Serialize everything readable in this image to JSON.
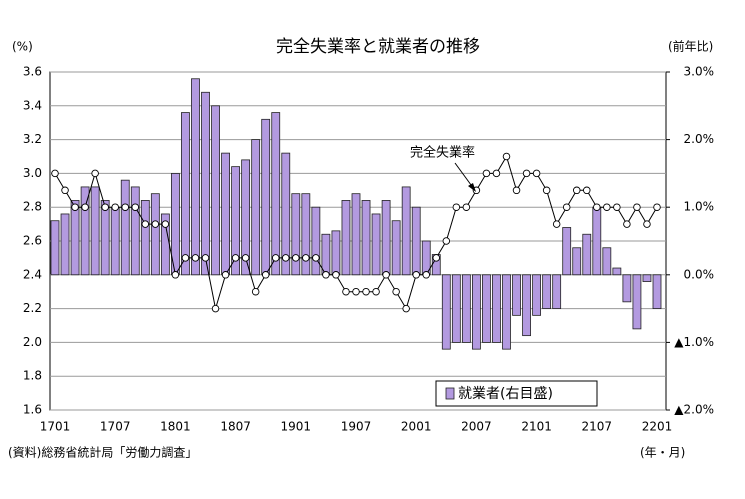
{
  "chart_data": {
    "type": "bar",
    "title": "完全失業率と就業者の推移",
    "y_label": "(%)",
    "y2_label": "(前年比)",
    "x_label": "(年・月)",
    "source": "(資料)総務省統計局「労働力調査」",
    "categories": [
      "1701",
      null,
      null,
      null,
      null,
      null,
      "1707",
      null,
      null,
      null,
      null,
      null,
      "1801",
      null,
      null,
      null,
      null,
      null,
      "1807",
      null,
      null,
      null,
      null,
      null,
      "1901",
      null,
      null,
      null,
      null,
      null,
      "1907",
      null,
      null,
      null,
      null,
      null,
      "2001",
      null,
      null,
      null,
      null,
      null,
      "2007",
      null,
      null,
      null,
      null,
      null,
      "2101",
      null,
      null,
      null,
      null,
      null,
      "2107",
      null,
      null,
      null,
      null,
      null,
      "2201"
    ],
    "series": [
      {
        "name": "就業者(右目盛)",
        "type": "bar",
        "axis": "y2",
        "color": "#b39ae0",
        "values": [
          0.8,
          0.9,
          1.1,
          1.3,
          1.3,
          1.1,
          1.0,
          1.4,
          1.3,
          1.1,
          1.2,
          0.9,
          1.5,
          2.4,
          2.9,
          2.7,
          2.5,
          1.8,
          1.6,
          1.7,
          2.0,
          2.3,
          2.4,
          1.8,
          1.2,
          1.2,
          1.0,
          0.6,
          0.65,
          1.1,
          1.2,
          1.1,
          0.9,
          1.1,
          0.8,
          1.3,
          1.0,
          0.5,
          0.3,
          -1.1,
          -1.0,
          -1.0,
          -1.1,
          -1.0,
          -1.0,
          -1.1,
          -0.6,
          -0.9,
          -0.6,
          -0.5,
          -0.5,
          0.7,
          0.4,
          0.6,
          1.0,
          0.4,
          0.1,
          -0.4,
          -0.8,
          -0.1,
          -0.5
        ]
      },
      {
        "name": "完全失業率",
        "type": "line",
        "axis": "y",
        "color": "#000000",
        "values": [
          3.0,
          2.9,
          2.8,
          2.8,
          3.0,
          2.8,
          2.8,
          2.8,
          2.8,
          2.7,
          2.7,
          2.7,
          2.4,
          2.5,
          2.5,
          2.5,
          2.2,
          2.4,
          2.5,
          2.5,
          2.3,
          2.4,
          2.5,
          2.5,
          2.5,
          2.5,
          2.5,
          2.4,
          2.4,
          2.3,
          2.3,
          2.3,
          2.3,
          2.4,
          2.3,
          2.2,
          2.4,
          2.4,
          2.5,
          2.6,
          2.8,
          2.8,
          2.9,
          3.0,
          3.0,
          3.1,
          2.9,
          3.0,
          3.0,
          2.9,
          2.7,
          2.8,
          2.9,
          2.9,
          2.8,
          2.8,
          2.8,
          2.7,
          2.8,
          2.7,
          2.8
        ]
      }
    ],
    "ylim": [
      1.6,
      3.6
    ],
    "yticks": [
      1.6,
      1.8,
      {
        "value": 2,
        "label": "2.0"
      },
      2.2,
      2.4,
      2.6,
      2.8,
      {
        "value": 3,
        "label": "3.0"
      },
      3.2,
      3.4,
      3.6
    ],
    "y2lim": [
      -2,
      3
    ],
    "y2ticks": [
      {
        "value": 3,
        "label": "3.0%"
      },
      {
        "value": 2,
        "label": "2.0%"
      },
      {
        "value": 1,
        "label": "1.0%"
      },
      {
        "value": 0,
        "label": "0.0%"
      },
      {
        "value": -1,
        "label": "▲1.0%"
      },
      {
        "value": -2,
        "label": "▲2.0%"
      }
    ],
    "grid": true
  }
}
